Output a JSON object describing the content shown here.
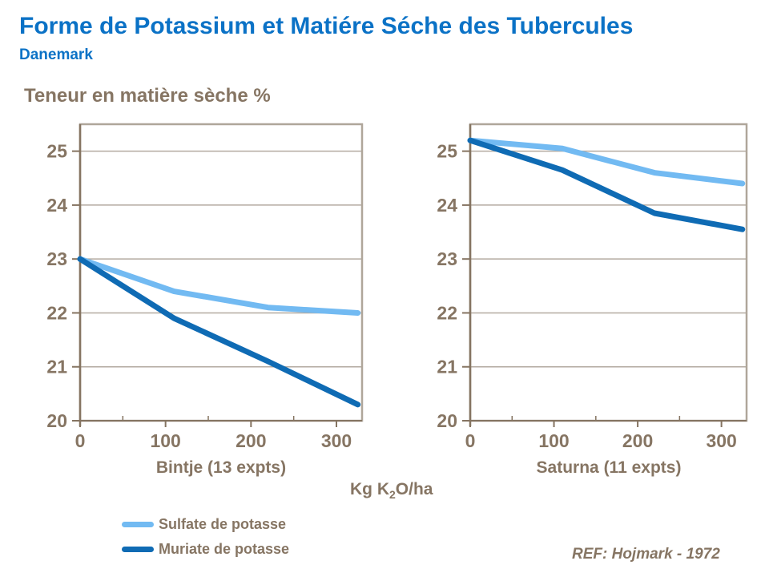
{
  "slide": {
    "title": "Forme de Potassium et Matiére Séche des Tubercules",
    "subtitle": "Danemark",
    "y_axis_heading": "Teneur en matière sèche %",
    "x_unit_prefix": "Kg K",
    "x_unit_sub": "2",
    "x_unit_suffix": "O/ha",
    "reference": "REF: Hojmark - 1972"
  },
  "colors": {
    "title_blue": "#0B72C6",
    "text_brown": "#867563",
    "sulfate_blue": "#72BAF2",
    "muriate_blue": "#0F6BB4",
    "grid": "#B3AAA0",
    "axis_light": "#AFA69A",
    "axis_dark": "#857461"
  },
  "legend": {
    "position": "bottom-left",
    "items": [
      {
        "label": "Sulfate de potasse",
        "color": "#72BAF2"
      },
      {
        "label": "Muriate de potasse",
        "color": "#0F6BB4"
      }
    ]
  },
  "chart_data": [
    {
      "type": "line",
      "title": "Bintje (13 expts)",
      "xlabel": "Kg K₂O/ha",
      "ylabel": "Teneur en matière sèche %",
      "x": [
        0,
        110,
        220,
        325
      ],
      "series": [
        {
          "name": "Sulfate de potasse",
          "color": "#72BAF2",
          "values": [
            23.0,
            22.4,
            22.1,
            22.0
          ]
        },
        {
          "name": "Muriate de potasse",
          "color": "#0F6BB4",
          "values": [
            23.0,
            21.9,
            21.1,
            20.3
          ]
        }
      ],
      "xlim": [
        0,
        330
      ],
      "ylim": [
        20,
        25.5
      ],
      "yticks": [
        20,
        21,
        22,
        23,
        24,
        25
      ],
      "xticks_major": [
        0,
        100,
        200,
        300
      ],
      "xticks_minor": [
        50,
        150,
        250
      ],
      "grid": true
    },
    {
      "type": "line",
      "title": "Saturna (11 expts)",
      "xlabel": "Kg K₂O/ha",
      "ylabel": "Teneur en matière sèche %",
      "x": [
        0,
        110,
        220,
        325
      ],
      "series": [
        {
          "name": "Sulfate de potasse",
          "color": "#72BAF2",
          "values": [
            25.2,
            25.05,
            24.6,
            24.4
          ]
        },
        {
          "name": "Muriate de potasse",
          "color": "#0F6BB4",
          "values": [
            25.2,
            24.65,
            23.85,
            23.55
          ]
        }
      ],
      "xlim": [
        0,
        330
      ],
      "ylim": [
        20,
        25.5
      ],
      "yticks": [
        20,
        21,
        22,
        23,
        24,
        25
      ],
      "xticks_major": [
        0,
        100,
        200,
        300
      ],
      "xticks_minor": [
        50,
        150,
        250
      ],
      "grid": true
    }
  ]
}
